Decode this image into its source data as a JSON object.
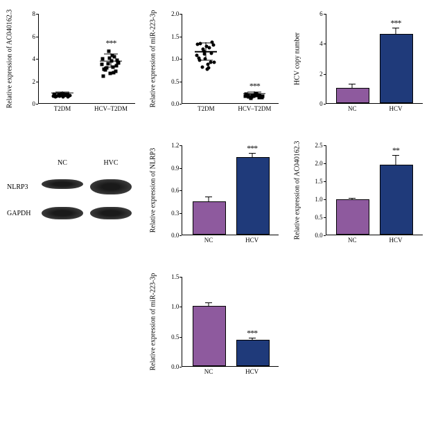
{
  "colors": {
    "purple": "#8e5a9e",
    "navy": "#1f3a7a",
    "black": "#000000"
  },
  "panels": {
    "p1": {
      "type": "scatter",
      "ylabel": "Relative expression of AC040162.3",
      "ylim": [
        0,
        8
      ],
      "ytick_step": 2,
      "groups": [
        "T2DM",
        "HCV–T2DM"
      ],
      "data": {
        "T2DM": [
          1.0,
          1.1,
          0.9,
          1.05,
          1.15,
          0.95,
          1.2,
          1.0,
          1.1,
          0.98,
          1.08,
          1.12,
          0.92,
          1.06,
          1.03,
          1.14,
          0.97,
          1.02,
          1.1,
          1.05
        ],
        "HCV-T2DM": [
          3.8,
          3.2,
          4.1,
          3.5,
          4.3,
          3.7,
          4.6,
          3.9,
          2.8,
          4.2,
          3.6,
          5.0,
          3.4,
          4.0,
          3.1,
          4.4,
          3.3,
          3.95,
          4.5,
          3.0
        ]
      },
      "marker": {
        "T2DM": "circle",
        "HCV-T2DM": "square"
      },
      "sig": "***",
      "sig_over": "HCV-T2DM"
    },
    "p2": {
      "type": "scatter",
      "ylabel": "Relative expression of miR-223-3p",
      "ylim": [
        0,
        2.0
      ],
      "ytick_step": 0.5,
      "groups": [
        "T2DM",
        "HCV–T2DM"
      ],
      "data": {
        "T2DM": [
          1.15,
          1.0,
          1.35,
          0.9,
          1.4,
          1.2,
          0.85,
          1.3,
          1.1,
          1.45,
          0.95,
          1.25,
          1.05,
          1.38,
          0.88,
          1.18,
          1.42,
          1.0,
          1.32,
          1.08
        ],
        "HCV-T2DM": [
          0.25,
          0.22,
          0.28,
          0.2,
          0.3,
          0.24,
          0.26,
          0.23,
          0.27,
          0.21,
          0.29,
          0.25,
          0.24,
          0.22,
          0.28,
          0.26,
          0.23,
          0.25,
          0.27,
          0.24
        ]
      },
      "marker": {
        "T2DM": "circle",
        "HCV-T2DM": "square"
      },
      "sig": "***",
      "sig_over": "HCV-T2DM"
    },
    "p3": {
      "type": "bar",
      "ylabel": "HCV copy number",
      "ylim": [
        0,
        6
      ],
      "ytick_step": 2,
      "groups": [
        "NC",
        "HCV"
      ],
      "values": [
        1.0,
        4.6
      ],
      "errors": [
        0.35,
        0.5
      ],
      "colors": [
        "#8e5a9e",
        "#1f3a7a"
      ],
      "sig": "***",
      "sig_over": "HCV"
    },
    "p4": {
      "type": "western",
      "cols": [
        "NC",
        "HVC"
      ],
      "rows": [
        "NLRP3",
        "GAPDH"
      ],
      "band_heights": {
        "NLRP3": [
          14,
          22
        ],
        "GAPDH": [
          18,
          18
        ]
      }
    },
    "p5": {
      "type": "bar",
      "ylabel": "Relative expression of NLRP3",
      "ylim": [
        0,
        1.2
      ],
      "ytick_step": 0.3,
      "groups": [
        "NC",
        "HCV"
      ],
      "values": [
        0.44,
        1.03
      ],
      "errors": [
        0.08,
        0.07
      ],
      "colors": [
        "#8e5a9e",
        "#1f3a7a"
      ],
      "sig": "***",
      "sig_over": "HCV"
    },
    "p6": {
      "type": "bar",
      "ylabel": "Relative expression of AC040162.3",
      "ylim": [
        0,
        2.5
      ],
      "ytick_step": 0.5,
      "groups": [
        "NC",
        "HCV"
      ],
      "values": [
        0.98,
        1.95
      ],
      "errors": [
        0.06,
        0.28
      ],
      "colors": [
        "#8e5a9e",
        "#1f3a7a"
      ],
      "sig": "**",
      "sig_over": "HCV"
    },
    "p7": {
      "type": "bar",
      "ylabel": "Relative expression of miR-223-3p",
      "ylim": [
        0,
        1.5
      ],
      "ytick_step": 0.5,
      "groups": [
        "NC",
        "HCV"
      ],
      "values": [
        1.0,
        0.44
      ],
      "errors": [
        0.07,
        0.04
      ],
      "colors": [
        "#8e5a9e",
        "#1f3a7a"
      ],
      "sig": "***",
      "sig_over": "HCV"
    }
  }
}
